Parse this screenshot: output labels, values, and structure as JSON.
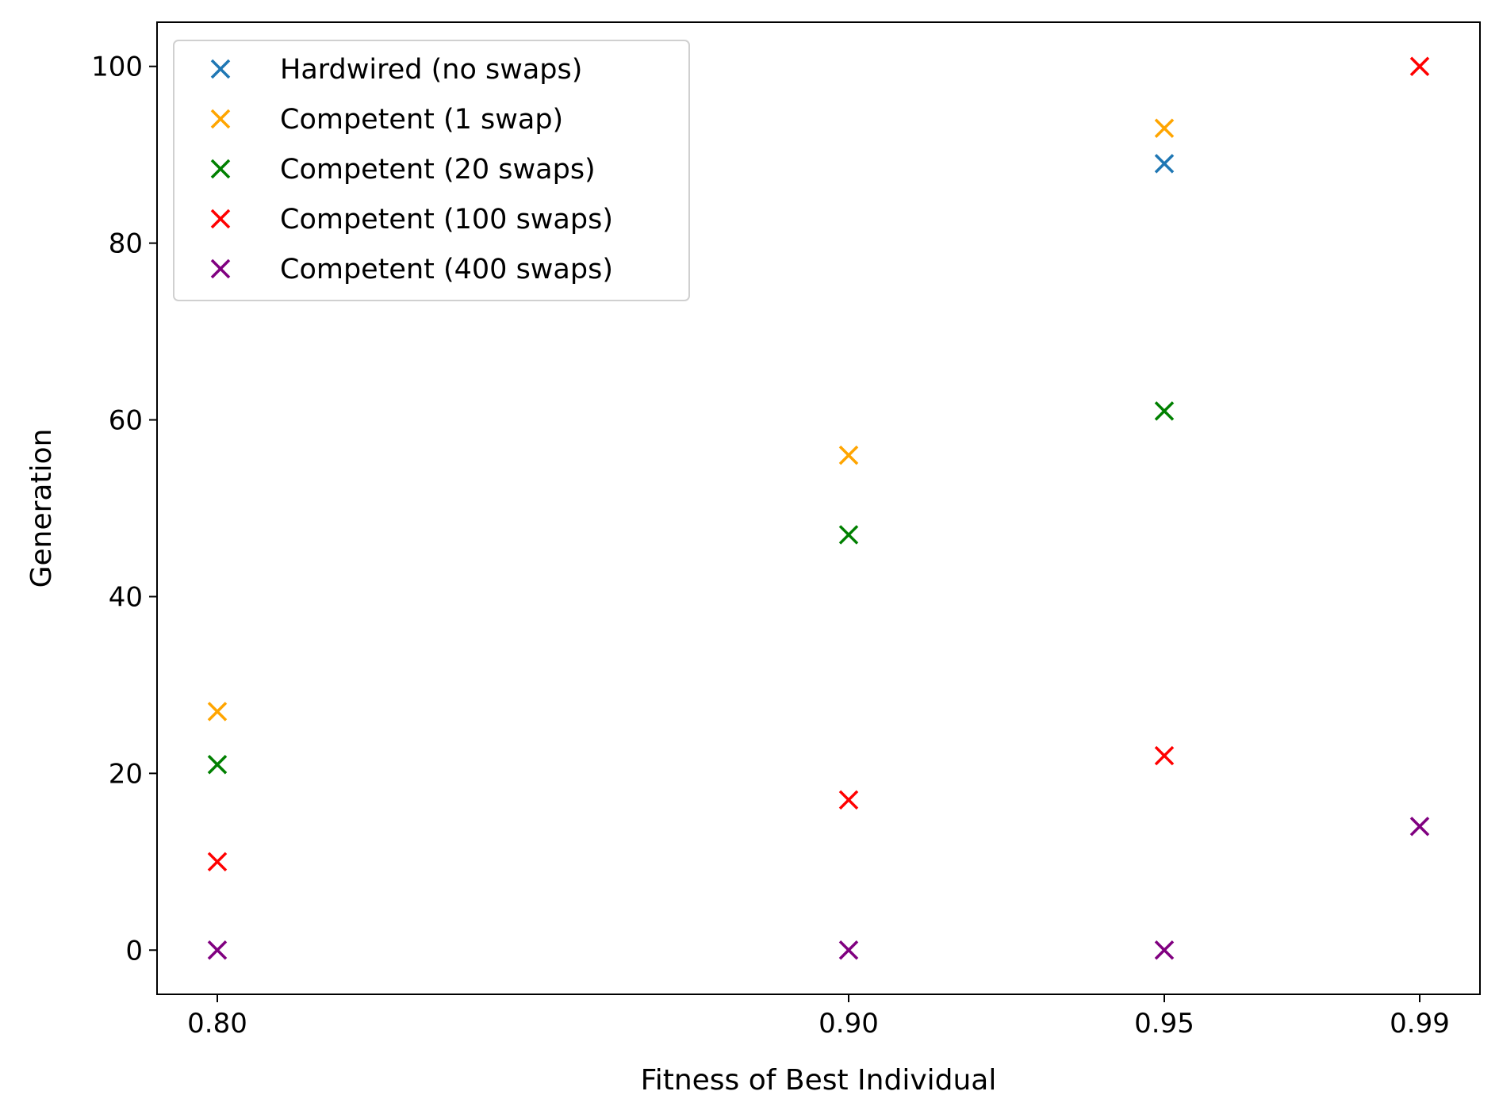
{
  "chart_data": {
    "type": "scatter",
    "title": "",
    "xlabel": "Fitness of Best Individual",
    "ylabel": "Generation",
    "x_ticks": [
      "0.80",
      "0.90",
      "0.95",
      "0.99"
    ],
    "y_ticks": [
      "0",
      "20",
      "40",
      "60",
      "80",
      "100"
    ],
    "ylim": [
      -5,
      105
    ],
    "grid": false,
    "legend_position": "top-left",
    "marker": "x",
    "series": [
      {
        "name": "Hardwired (no swaps)",
        "color": "#1f77b4",
        "points": [
          {
            "x": "0.95",
            "y": 89
          }
        ]
      },
      {
        "name": "Competent (1 swap)",
        "color": "#ffa500",
        "points": [
          {
            "x": "0.80",
            "y": 27
          },
          {
            "x": "0.90",
            "y": 56
          },
          {
            "x": "0.95",
            "y": 93
          }
        ]
      },
      {
        "name": "Competent (20 swaps)",
        "color": "#008000",
        "points": [
          {
            "x": "0.80",
            "y": 21
          },
          {
            "x": "0.90",
            "y": 47
          },
          {
            "x": "0.95",
            "y": 61
          }
        ]
      },
      {
        "name": "Competent (100 swaps)",
        "color": "#ff0000",
        "points": [
          {
            "x": "0.80",
            "y": 10
          },
          {
            "x": "0.90",
            "y": 17
          },
          {
            "x": "0.95",
            "y": 22
          },
          {
            "x": "0.99",
            "y": 100
          }
        ]
      },
      {
        "name": "Competent (400 swaps)",
        "color": "#800080",
        "points": [
          {
            "x": "0.80",
            "y": 0
          },
          {
            "x": "0.90",
            "y": 0
          },
          {
            "x": "0.95",
            "y": 0
          },
          {
            "x": "0.99",
            "y": 14
          }
        ]
      }
    ]
  }
}
